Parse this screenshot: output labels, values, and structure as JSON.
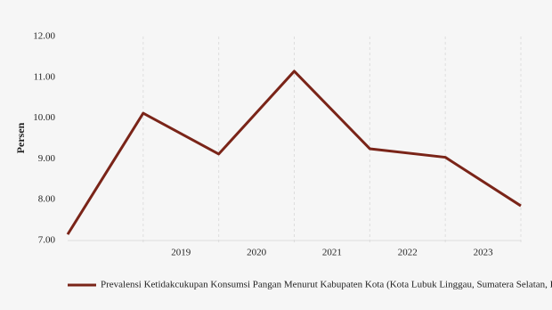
{
  "chart_data": {
    "type": "line",
    "y_label": "Persen",
    "x": [
      2017.5,
      2018.5,
      2019.5,
      2020.5,
      2021.5,
      2022.5,
      2023.5
    ],
    "xlim": [
      2017.5,
      2023.5
    ],
    "xticks": [
      2019,
      2020,
      2021,
      2022,
      2023
    ],
    "ylim": [
      7,
      12
    ],
    "yticks": [
      {
        "value": 7,
        "label": "7.00"
      },
      {
        "value": 8,
        "label": "8.00"
      },
      {
        "value": 9,
        "label": "9.00"
      },
      {
        "value": 10,
        "label": "10.00"
      },
      {
        "value": 11,
        "label": "11.00"
      },
      {
        "value": 12,
        "label": "12.00"
      }
    ],
    "grid": true,
    "legend": "bottom",
    "series": [
      {
        "name": "Prevalensi Ketidakcukupan Konsumsi Pangan Menurut Kabupaten Kota (Kota Lubuk Linggau, Sumatera Selatan, I",
        "color": "#7a2418",
        "values": [
          7.15,
          10.12,
          9.12,
          11.15,
          9.25,
          9.04,
          7.85
        ]
      }
    ]
  }
}
